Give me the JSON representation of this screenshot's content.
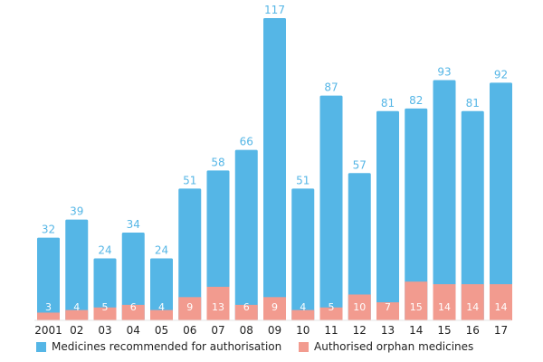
{
  "chart_data": {
    "type": "bar",
    "stacked": "overlay",
    "title": "",
    "xlabel": "",
    "ylabel": "",
    "ylim": [
      0,
      120
    ],
    "categories": [
      "2001",
      "02",
      "03",
      "04",
      "05",
      "06",
      "07",
      "08",
      "09",
      "10",
      "11",
      "12",
      "13",
      "14",
      "15",
      "16",
      "17"
    ],
    "series": [
      {
        "name": "Medicines recommended for authorisation",
        "color": "#55b6e6",
        "label_color": "#55b6e6",
        "values": [
          32,
          39,
          24,
          34,
          24,
          51,
          58,
          66,
          117,
          51,
          87,
          57,
          81,
          82,
          93,
          81,
          92
        ]
      },
      {
        "name": "Authorised orphan medicines",
        "color": "#f29b8f",
        "label_color": "#ffffff",
        "values": [
          3,
          4,
          5,
          6,
          4,
          9,
          13,
          6,
          9,
          4,
          5,
          10,
          7,
          15,
          14,
          14,
          14
        ]
      }
    ],
    "legend": {
      "position": "bottom",
      "items": [
        {
          "label": "Medicines recommended for authorisation",
          "color": "#55b6e6"
        },
        {
          "label": "Authorised orphan medicines",
          "color": "#f29b8f"
        }
      ]
    }
  }
}
